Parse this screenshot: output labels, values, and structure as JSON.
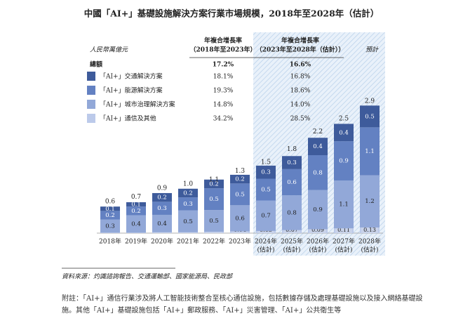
{
  "chart_data": {
    "type": "stacked-bar",
    "title": "中國「AI+」基礎設施解決方案行業市場規模，2018年至2028年（估計）",
    "unit_label": "人民幣萬億元",
    "cagr_headers": [
      [
        "年複合增長率",
        "（2018年至2023年）"
      ],
      [
        "年複合增長率",
        "（2023年至2028年（估計））"
      ]
    ],
    "forecast_label": "預計",
    "categories": [
      "2018年",
      "2019年",
      "2020年",
      "2021年",
      "2022年",
      "2023年",
      "2024年",
      "2025年",
      "2026年",
      "2027年",
      "2028年"
    ],
    "category_notes": [
      null,
      null,
      null,
      null,
      null,
      null,
      "(估計)",
      "(估計)",
      "(估計)",
      "(估計)",
      "(估計)"
    ],
    "totals": {
      "name": "總額",
      "cagr": [
        "17.2%",
        "16.6%"
      ],
      "values": [
        0.6,
        0.7,
        0.9,
        1.0,
        1.1,
        1.3,
        1.5,
        1.8,
        2.2,
        2.5,
        2.9
      ],
      "value_labels": [
        "0.6",
        "0.7",
        "0.9",
        "1.0",
        "1.1",
        "1.3",
        "1.5",
        "1.8",
        "2.2",
        "2.5",
        "2.9"
      ]
    },
    "series": [
      {
        "name": "「AI+」交通解決方案",
        "color": "#3e5b9b",
        "cagr": [
          "18.1%",
          "16.8%"
        ],
        "values": [
          0.1,
          0.1,
          0.2,
          0.2,
          0.2,
          0.2,
          0.3,
          0.3,
          0.4,
          0.4,
          0.5
        ]
      },
      {
        "name": "「AI+」能源解決方案",
        "color": "#6381c2",
        "cagr": [
          "19.3%",
          "18.6%"
        ],
        "values": [
          0.2,
          0.2,
          0.3,
          0.3,
          0.5,
          0.5,
          0.5,
          0.6,
          0.8,
          0.9,
          1.1
        ]
      },
      {
        "name": "「AI+」城市治理解決方案",
        "color": "#92a8d8",
        "cagr": [
          "14.8%",
          "14.0%"
        ],
        "values": [
          0.3,
          0.4,
          0.4,
          0.5,
          0.5,
          0.6,
          0.7,
          0.8,
          0.9,
          1.1,
          1.2
        ]
      },
      {
        "name": "「AI+」通信及其他",
        "color": "#bccaea",
        "cagr": [
          "34.2%",
          "28.5%"
        ],
        "values": [
          0.01,
          0.01,
          0.02,
          0.02,
          0.03,
          0.04,
          0.05,
          0.07,
          0.09,
          0.11,
          0.13
        ]
      }
    ]
  },
  "source": "資料來源：灼識諮詢報告、交通運輸部、國家能源局、民政部",
  "note": "附註：「AI+」通信行業涉及將人工智能技術整合至核心通信設施，包括數據存儲及處理基礎設施以及接入網絡基礎設施。其他「AI+」基礎設施包括「AI+」郵政服務、「AI+」災害管理、「AI+」公共衛生等"
}
